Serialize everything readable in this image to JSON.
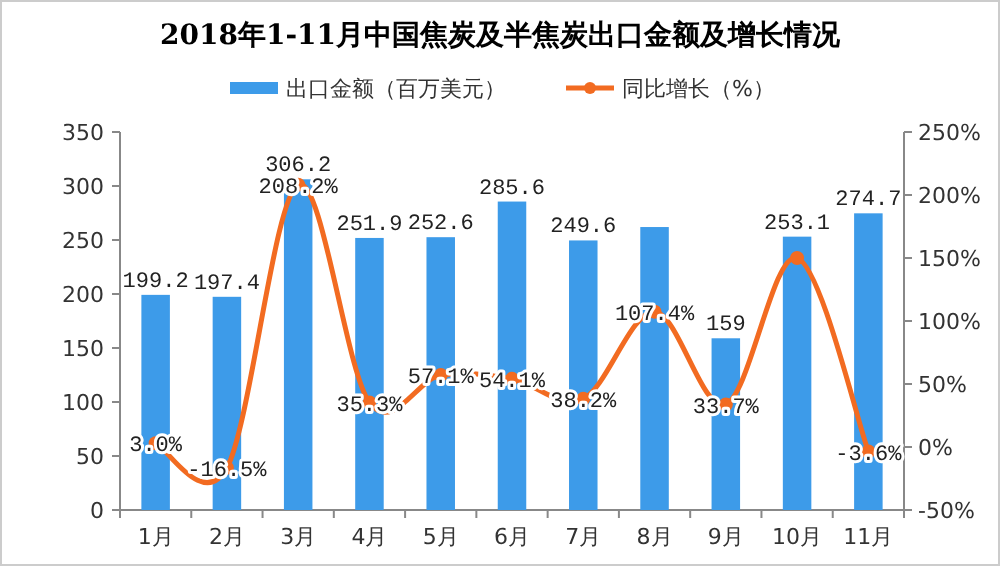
{
  "chart_data": {
    "type": "bar",
    "title": "2018年1-11月中国焦炭及半焦炭出口金额及增长情况",
    "categories": [
      "1月",
      "2月",
      "3月",
      "4月",
      "5月",
      "6月",
      "7月",
      "8月",
      "9月",
      "10月",
      "11月"
    ],
    "series": [
      {
        "name": "出口金额（百万美元）",
        "color": "#3d9be9",
        "values": [
          199.2,
          197.4,
          306.2,
          251.9,
          252.6,
          285.6,
          249.6,
          262,
          159,
          253.1,
          274.7
        ],
        "value_labels": [
          "199.2",
          "197.4",
          "306.2",
          "251.9",
          "252.6",
          "285.6",
          "249.6",
          null,
          "159",
          "253.1",
          "274.7"
        ]
      },
      {
        "name": "同比增长（%）",
        "type": "line",
        "axis": "y2",
        "color": "#f26b21",
        "values": [
          3.0,
          -16.5,
          208.2,
          35.3,
          57.1,
          54.1,
          38.2,
          107.4,
          33.7,
          150,
          -3.6
        ],
        "value_labels": [
          "3.0%",
          "-16.5%",
          "208.2%",
          "35.3%",
          "57.1%",
          "54.1%",
          "38.2%",
          "107.4%",
          "33.7%",
          null,
          "-3.6%"
        ]
      }
    ],
    "ylim": [
      0,
      350
    ],
    "yticks": [
      0,
      50,
      100,
      150,
      200,
      250,
      300,
      350
    ],
    "y2lim": [
      -50,
      250
    ],
    "y2ticks": [
      {
        "value": -50,
        "label": "-50%"
      },
      {
        "value": 0,
        "label": "0%"
      },
      {
        "value": 50,
        "label": "50%"
      },
      {
        "value": 100,
        "label": "100%"
      },
      {
        "value": 150,
        "label": "150%"
      },
      {
        "value": 200,
        "label": "200%"
      },
      {
        "value": 250,
        "label": "250%"
      }
    ],
    "legend": "top",
    "grid": false,
    "marker": "circle"
  }
}
